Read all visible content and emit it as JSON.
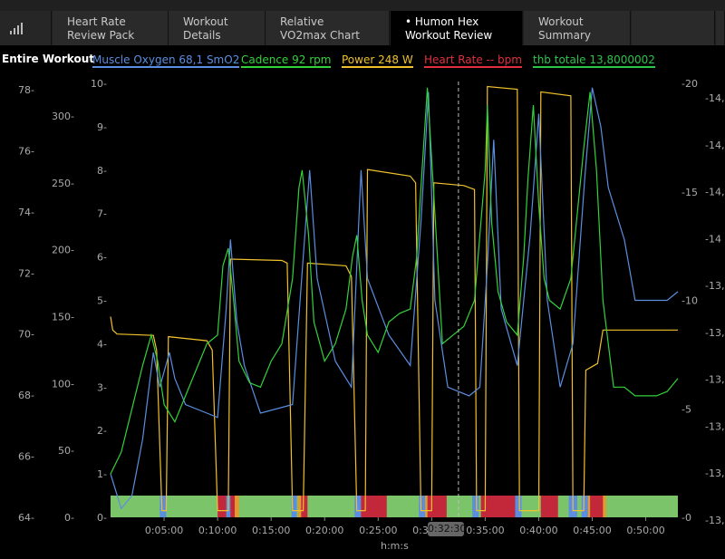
{
  "tabs": [
    {
      "label": "Heart Rate\nReview Pack"
    },
    {
      "label": "Workout\nDetails"
    },
    {
      "label": "Relative\nVO2max Chart"
    },
    {
      "label": "• Humon Hex\nWorkout Review"
    },
    {
      "label": "Workout\nSummary"
    }
  ],
  "chart_title": "Entire Workout",
  "legend": [
    {
      "label": "Muscle Oxygen  68,1 SmO2",
      "color": "#5b8ee0"
    },
    {
      "label": "Cadence  92 rpm",
      "color": "#34d23a"
    },
    {
      "label": "Power  248 W",
      "color": "#f0c12c"
    },
    {
      "label": "Heart Rate  -- bpm",
      "color": "#e03040"
    },
    {
      "label": "thb totale  13,8000002",
      "color": "#2dc44a"
    }
  ],
  "axes": {
    "hr_ticks": [
      "78",
      "76",
      "74",
      "72",
      "70",
      "68",
      "66",
      "64"
    ],
    "power_ticks": [
      "300",
      "250",
      "200",
      "150",
      "100",
      "50",
      "0"
    ],
    "smo2_ticks": [
      "10",
      "9",
      "8",
      "7",
      "6",
      "5",
      "4",
      "3",
      "2",
      "1",
      "0"
    ],
    "right1_ticks": [
      "20",
      "15",
      "10",
      "5",
      "0"
    ],
    "right2_ticks": [
      "14,3",
      "14,2",
      "14,1",
      "14",
      "13,9",
      "13,8",
      "13,7",
      "13,6",
      "13,5",
      "13,4"
    ],
    "x_ticks": [
      "0:05:00",
      "0:10:00",
      "0:15:00",
      "0:20:00",
      "0:25:00",
      "0:30:00",
      "0:35:00",
      "0:40:00",
      "0:45:00",
      "0:50:00"
    ],
    "x_unit": "h:m:s"
  },
  "cursor_time": "0:32:30",
  "chart_data": {
    "type": "line",
    "x_label": "h:m:s",
    "x_range_min": [
      0,
      53
    ],
    "series": [
      {
        "name": "Power",
        "color": "#f0c12c",
        "unit": "W",
        "points": [
          [
            0,
            150
          ],
          [
            0.2,
            140
          ],
          [
            0.6,
            137
          ],
          [
            4,
            136
          ],
          [
            4.3,
            125
          ],
          [
            4.8,
            5
          ],
          [
            5.2,
            5
          ],
          [
            5.4,
            135
          ],
          [
            9,
            132
          ],
          [
            9.5,
            125
          ],
          [
            10,
            5
          ],
          [
            11,
            5
          ],
          [
            11.2,
            193
          ],
          [
            16,
            192
          ],
          [
            16.5,
            190
          ],
          [
            17,
            5
          ],
          [
            18,
            5
          ],
          [
            18.4,
            190
          ],
          [
            22,
            188
          ],
          [
            22.5,
            180
          ],
          [
            23,
            5
          ],
          [
            23.8,
            5
          ],
          [
            24,
            260
          ],
          [
            28,
            255
          ],
          [
            28.5,
            250
          ],
          [
            29,
            5
          ],
          [
            30,
            5
          ],
          [
            30.2,
            250
          ],
          [
            33,
            248
          ],
          [
            34,
            245
          ],
          [
            34.2,
            5
          ],
          [
            35,
            5
          ],
          [
            35.2,
            322
          ],
          [
            38,
            320
          ],
          [
            38.2,
            5
          ],
          [
            40,
            5
          ],
          [
            40.2,
            318
          ],
          [
            43,
            315
          ],
          [
            43.2,
            5
          ],
          [
            44.2,
            5
          ],
          [
            44.4,
            110
          ],
          [
            45.5,
            115
          ],
          [
            46,
            140
          ],
          [
            53,
            140
          ]
        ]
      },
      {
        "name": "Muscle Oxygen",
        "color": "#5b8ee0",
        "unit": "SmO2",
        "points": [
          [
            0,
            1.0
          ],
          [
            1,
            0.2
          ],
          [
            2,
            0.5
          ],
          [
            3,
            1.8
          ],
          [
            4,
            3.8
          ],
          [
            4.6,
            3.0
          ],
          [
            5.5,
            3.8
          ],
          [
            6,
            3.2
          ],
          [
            7,
            2.6
          ],
          [
            9,
            2.4
          ],
          [
            10,
            2.3
          ],
          [
            10.8,
            4.8
          ],
          [
            11.2,
            6.4
          ],
          [
            11.8,
            4.5
          ],
          [
            12.5,
            3.5
          ],
          [
            14,
            2.4
          ],
          [
            17,
            2.6
          ],
          [
            18,
            6.0
          ],
          [
            18.6,
            8.0
          ],
          [
            19.3,
            5.5
          ],
          [
            21,
            3.6
          ],
          [
            22.5,
            3.0
          ],
          [
            23.4,
            8.0
          ],
          [
            24,
            5.5
          ],
          [
            26,
            4.2
          ],
          [
            28,
            3.5
          ],
          [
            29,
            6.8
          ],
          [
            29.7,
            9.8
          ],
          [
            30.3,
            5.0
          ],
          [
            31.5,
            3.0
          ],
          [
            33.5,
            2.8
          ],
          [
            34.5,
            3.0
          ],
          [
            35.2,
            5.8
          ],
          [
            35.8,
            8.7
          ],
          [
            36.5,
            4.8
          ],
          [
            38,
            3.5
          ],
          [
            39.2,
            6.5
          ],
          [
            40,
            9.3
          ],
          [
            40.8,
            5.0
          ],
          [
            42,
            3.0
          ],
          [
            43.2,
            4.0
          ],
          [
            44.3,
            7.8
          ],
          [
            45,
            9.9
          ],
          [
            45.8,
            9.0
          ],
          [
            46.5,
            7.6
          ],
          [
            48,
            6.4
          ],
          [
            49,
            5.0
          ],
          [
            50,
            5.0
          ],
          [
            51,
            5.0
          ],
          [
            52,
            5.0
          ],
          [
            53,
            5.2
          ]
        ]
      },
      {
        "name": "Cadence",
        "color": "#34d23a",
        "unit": "rpm",
        "points": [
          [
            0,
            1.0
          ],
          [
            1,
            1.5
          ],
          [
            2,
            2.5
          ],
          [
            3,
            3.5
          ],
          [
            3.8,
            4.2
          ],
          [
            4.4,
            3.6
          ],
          [
            5,
            2.6
          ],
          [
            6,
            2.2
          ],
          [
            7,
            2.8
          ],
          [
            8,
            3.4
          ],
          [
            9,
            4.0
          ],
          [
            10,
            4.2
          ],
          [
            10.5,
            5.8
          ],
          [
            11,
            6.2
          ],
          [
            11.5,
            5.0
          ],
          [
            12,
            3.6
          ],
          [
            13,
            3.1
          ],
          [
            14,
            3.0
          ],
          [
            15,
            3.6
          ],
          [
            16,
            4.0
          ],
          [
            17,
            5.5
          ],
          [
            17.6,
            7.6
          ],
          [
            17.9,
            8.0
          ],
          [
            18.5,
            6.5
          ],
          [
            19,
            4.5
          ],
          [
            20,
            3.6
          ],
          [
            21,
            4.0
          ],
          [
            22,
            4.8
          ],
          [
            22.6,
            6.0
          ],
          [
            23,
            6.5
          ],
          [
            23.5,
            5.0
          ],
          [
            24,
            4.2
          ],
          [
            25,
            3.8
          ],
          [
            26,
            4.5
          ],
          [
            27,
            4.7
          ],
          [
            28,
            4.8
          ],
          [
            28.6,
            6.0
          ],
          [
            29,
            7.6
          ],
          [
            29.6,
            9.9
          ],
          [
            30.3,
            7.0
          ],
          [
            31,
            4.0
          ],
          [
            32,
            4.2
          ],
          [
            33,
            4.4
          ],
          [
            34,
            5.0
          ],
          [
            34.5,
            6.5
          ],
          [
            35,
            8.0
          ],
          [
            35.2,
            9.5
          ],
          [
            35.6,
            6.8
          ],
          [
            36.2,
            5.2
          ],
          [
            37,
            4.5
          ],
          [
            38,
            4.2
          ],
          [
            38.6,
            6.0
          ],
          [
            39,
            7.8
          ],
          [
            39.5,
            9.5
          ],
          [
            40,
            7.2
          ],
          [
            40.5,
            5.5
          ],
          [
            41,
            5.0
          ],
          [
            42,
            4.8
          ],
          [
            43,
            5.5
          ],
          [
            43.6,
            7.0
          ],
          [
            44.2,
            8.5
          ],
          [
            44.8,
            9.8
          ],
          [
            45.4,
            8.0
          ],
          [
            46,
            5.0
          ],
          [
            47,
            3.0
          ],
          [
            48,
            3.0
          ],
          [
            49,
            2.8
          ],
          [
            50,
            2.8
          ],
          [
            51,
            2.8
          ],
          [
            52,
            2.9
          ],
          [
            53,
            3.2
          ]
        ]
      }
    ]
  }
}
